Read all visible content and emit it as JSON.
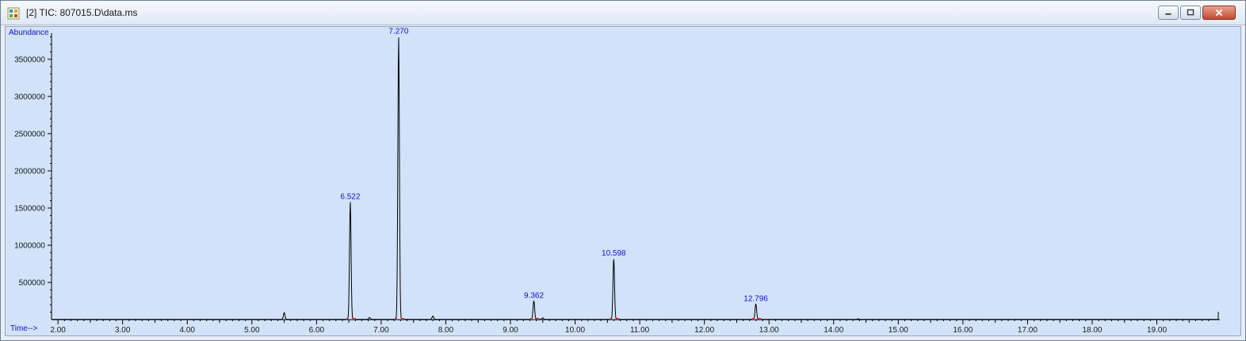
{
  "window": {
    "title": "[2] TIC: 807015.D\\data.ms",
    "icon": "chromatogram-app-icon",
    "buttons": [
      {
        "name": "minimize-button",
        "icon": "minimize-icon"
      },
      {
        "name": "maximize-button",
        "icon": "maximize-icon"
      },
      {
        "name": "close-button",
        "icon": "close-icon"
      }
    ]
  },
  "colors": {
    "plot_background": "#d2e2f8",
    "trace": "#000000",
    "labels": "#1010d0",
    "baseline_marks": "#e0202a"
  },
  "chart_data": {
    "type": "line",
    "ylabel": "Abundance",
    "xlabel": "Time-->",
    "xlim": [
      1.9,
      19.95
    ],
    "ylim": [
      0,
      3850000
    ],
    "x_ticks": [
      "2.00",
      "3.00",
      "4.00",
      "5.00",
      "6.00",
      "7.00",
      "8.00",
      "9.00",
      "10.00",
      "11.00",
      "12.00",
      "13.00",
      "14.00",
      "15.00",
      "16.00",
      "17.00",
      "18.00",
      "19.00"
    ],
    "y_ticks": [
      "500000",
      "1000000",
      "1500000",
      "2000000",
      "2500000",
      "3000000",
      "3500000"
    ],
    "grid": false,
    "peaks": [
      {
        "label": "6.522",
        "x": 6.522,
        "y": 1580000
      },
      {
        "label": "7.270",
        "x": 7.27,
        "y": 3800000
      },
      {
        "label": "9.362",
        "x": 9.362,
        "y": 250000
      },
      {
        "label": "10.598",
        "x": 10.598,
        "y": 820000
      },
      {
        "label": "12.796",
        "x": 12.796,
        "y": 210000
      }
    ],
    "minor_peaks": [
      {
        "x": 5.5,
        "y": 90000
      },
      {
        "x": 6.82,
        "y": 25000
      },
      {
        "x": 7.8,
        "y": 45000
      },
      {
        "x": 9.5,
        "y": 20000
      },
      {
        "x": 14.38,
        "y": 8000
      }
    ]
  }
}
